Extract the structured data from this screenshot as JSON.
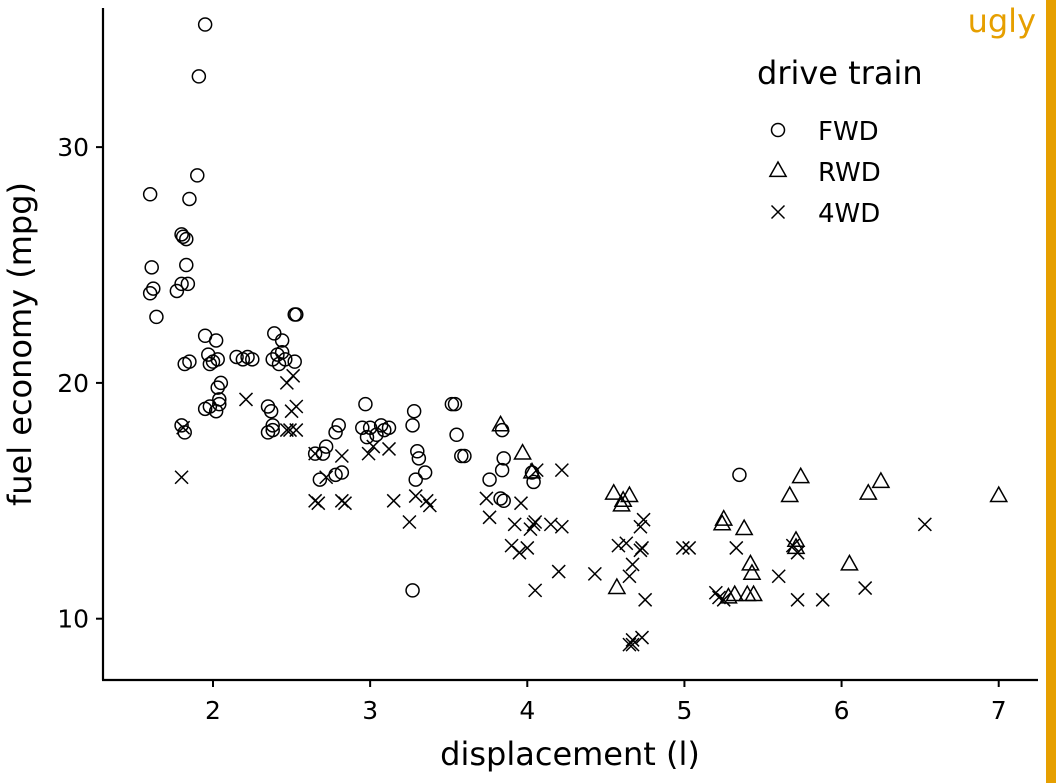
{
  "badge": {
    "text": "ugly",
    "color": "#E69F00"
  },
  "chart_data": {
    "type": "scatter",
    "xlabel": "displacement (l)",
    "ylabel": "fuel economy (mpg)",
    "xlim": [
      1.3,
      7.25
    ],
    "ylim": [
      7.4,
      35.9
    ],
    "xticks": [
      2,
      3,
      4,
      5,
      6,
      7
    ],
    "yticks": [
      10,
      20,
      30
    ],
    "grid": false,
    "legend": {
      "title": "drive train",
      "placement": "top-right",
      "entries": [
        {
          "label": "FWD",
          "shape": "circle"
        },
        {
          "label": "RWD",
          "shape": "triangle"
        },
        {
          "label": "4WD",
          "shape": "cross"
        }
      ]
    },
    "series": [
      {
        "name": "FWD",
        "shape": "circle",
        "points": [
          [
            1.95,
            35.2
          ],
          [
            1.91,
            33.0
          ],
          [
            1.9,
            28.8
          ],
          [
            1.6,
            28.0
          ],
          [
            1.85,
            27.8
          ],
          [
            1.8,
            26.3
          ],
          [
            1.81,
            26.2
          ],
          [
            1.83,
            26.1
          ],
          [
            1.61,
            24.9
          ],
          [
            1.83,
            25.0
          ],
          [
            1.62,
            24.0
          ],
          [
            1.6,
            23.8
          ],
          [
            1.8,
            24.2
          ],
          [
            1.84,
            24.2
          ],
          [
            1.77,
            23.9
          ],
          [
            1.64,
            22.8
          ],
          [
            1.95,
            22.0
          ],
          [
            2.02,
            21.8
          ],
          [
            1.97,
            21.2
          ],
          [
            2.0,
            20.9
          ],
          [
            2.03,
            21.0
          ],
          [
            1.98,
            20.8
          ],
          [
            1.85,
            20.9
          ],
          [
            1.82,
            20.8
          ],
          [
            2.15,
            21.1
          ],
          [
            2.19,
            21.0
          ],
          [
            2.22,
            21.1
          ],
          [
            2.25,
            21.0
          ],
          [
            2.39,
            22.1
          ],
          [
            2.44,
            21.8
          ],
          [
            2.41,
            21.2
          ],
          [
            2.44,
            21.3
          ],
          [
            2.38,
            21.0
          ],
          [
            2.46,
            21.0
          ],
          [
            2.42,
            20.8
          ],
          [
            2.52,
            20.9
          ],
          [
            2.52,
            22.9
          ],
          [
            2.53,
            22.9
          ],
          [
            2.05,
            20.0
          ],
          [
            2.03,
            19.8
          ],
          [
            2.04,
            19.1
          ],
          [
            1.95,
            18.9
          ],
          [
            2.02,
            18.8
          ],
          [
            1.98,
            19.0
          ],
          [
            2.04,
            19.3
          ],
          [
            1.8,
            18.2
          ],
          [
            1.82,
            17.9
          ],
          [
            2.35,
            19.0
          ],
          [
            2.37,
            18.8
          ],
          [
            2.38,
            18.2
          ],
          [
            2.35,
            17.9
          ],
          [
            2.38,
            18.0
          ],
          [
            2.8,
            18.2
          ],
          [
            2.78,
            17.9
          ],
          [
            2.72,
            17.3
          ],
          [
            2.7,
            17.0
          ],
          [
            2.65,
            17.0
          ],
          [
            2.68,
            15.9
          ],
          [
            2.78,
            16.1
          ],
          [
            2.82,
            16.2
          ],
          [
            2.95,
            18.1
          ],
          [
            2.97,
            19.1
          ],
          [
            2.98,
            17.7
          ],
          [
            3.0,
            18.1
          ],
          [
            3.04,
            17.8
          ],
          [
            3.07,
            18.2
          ],
          [
            3.09,
            18.0
          ],
          [
            3.12,
            18.1
          ],
          [
            3.28,
            18.8
          ],
          [
            3.27,
            18.2
          ],
          [
            3.3,
            17.1
          ],
          [
            3.31,
            16.8
          ],
          [
            3.35,
            16.2
          ],
          [
            3.29,
            15.9
          ],
          [
            3.27,
            11.2
          ],
          [
            3.52,
            19.1
          ],
          [
            3.54,
            19.1
          ],
          [
            3.55,
            17.8
          ],
          [
            3.58,
            16.9
          ],
          [
            3.6,
            16.9
          ],
          [
            3.84,
            18.0
          ],
          [
            3.85,
            16.8
          ],
          [
            3.84,
            16.3
          ],
          [
            3.83,
            15.1
          ],
          [
            3.85,
            15.0
          ],
          [
            3.76,
            15.9
          ],
          [
            4.03,
            16.2
          ],
          [
            4.04,
            15.8
          ],
          [
            5.35,
            16.1
          ]
        ]
      },
      {
        "name": "RWD",
        "shape": "triangle",
        "points": [
          [
            3.83,
            18.2
          ],
          [
            3.97,
            17.0
          ],
          [
            4.03,
            16.2
          ],
          [
            4.55,
            15.3
          ],
          [
            4.65,
            15.2
          ],
          [
            4.61,
            15.0
          ],
          [
            4.6,
            14.8
          ],
          [
            4.57,
            11.3
          ],
          [
            5.25,
            14.2
          ],
          [
            5.24,
            14.0
          ],
          [
            5.38,
            13.8
          ],
          [
            5.42,
            12.3
          ],
          [
            5.43,
            11.9
          ],
          [
            5.32,
            11.0
          ],
          [
            5.28,
            10.9
          ],
          [
            5.4,
            11.0
          ],
          [
            5.44,
            11.0
          ],
          [
            5.67,
            15.2
          ],
          [
            5.74,
            16.0
          ],
          [
            5.71,
            13.3
          ],
          [
            5.71,
            13.0
          ],
          [
            6.05,
            12.3
          ],
          [
            6.17,
            15.3
          ],
          [
            6.25,
            15.8
          ],
          [
            7.0,
            15.2
          ]
        ]
      },
      {
        "name": "4WD",
        "shape": "cross",
        "points": [
          [
            1.8,
            16.0
          ],
          [
            1.81,
            18.1
          ],
          [
            2.21,
            19.3
          ],
          [
            2.47,
            20.0
          ],
          [
            2.51,
            20.3
          ],
          [
            2.53,
            19.0
          ],
          [
            2.5,
            18.8
          ],
          [
            2.53,
            18.0
          ],
          [
            2.47,
            18.0
          ],
          [
            2.49,
            18.0
          ],
          [
            2.65,
            17.0
          ],
          [
            2.72,
            16.0
          ],
          [
            2.65,
            15.0
          ],
          [
            2.67,
            14.9
          ],
          [
            2.82,
            16.9
          ],
          [
            2.82,
            15.0
          ],
          [
            2.84,
            14.9
          ],
          [
            2.99,
            17.0
          ],
          [
            3.02,
            17.3
          ],
          [
            3.12,
            17.2
          ],
          [
            3.15,
            15.0
          ],
          [
            3.36,
            15.0
          ],
          [
            3.38,
            14.8
          ],
          [
            3.25,
            14.1
          ],
          [
            3.29,
            15.2
          ],
          [
            3.74,
            15.1
          ],
          [
            3.76,
            14.3
          ],
          [
            3.96,
            14.9
          ],
          [
            3.92,
            14.0
          ],
          [
            3.9,
            13.1
          ],
          [
            3.95,
            12.8
          ],
          [
            4.0,
            13.0
          ],
          [
            4.05,
            14.1
          ],
          [
            4.04,
            14.0
          ],
          [
            4.02,
            13.8
          ],
          [
            4.06,
            16.3
          ],
          [
            4.22,
            16.3
          ],
          [
            4.15,
            14.0
          ],
          [
            4.22,
            13.9
          ],
          [
            4.2,
            12.0
          ],
          [
            4.05,
            11.2
          ],
          [
            4.43,
            11.9
          ],
          [
            4.58,
            13.1
          ],
          [
            4.63,
            13.2
          ],
          [
            4.72,
            13.9
          ],
          [
            4.74,
            14.2
          ],
          [
            4.73,
            13.0
          ],
          [
            4.72,
            12.9
          ],
          [
            4.67,
            12.3
          ],
          [
            4.65,
            11.8
          ],
          [
            4.75,
            10.8
          ],
          [
            4.67,
            9.1
          ],
          [
            4.73,
            9.2
          ],
          [
            4.65,
            8.9
          ],
          [
            4.67,
            8.9
          ],
          [
            4.99,
            13.0
          ],
          [
            5.03,
            13.0
          ],
          [
            5.2,
            11.1
          ],
          [
            5.22,
            10.9
          ],
          [
            5.25,
            10.8
          ],
          [
            5.33,
            13.0
          ],
          [
            5.6,
            11.8
          ],
          [
            5.69,
            13.1
          ],
          [
            5.72,
            12.8
          ],
          [
            5.72,
            10.8
          ],
          [
            5.88,
            10.8
          ],
          [
            6.15,
            11.3
          ],
          [
            6.53,
            14.0
          ]
        ]
      }
    ]
  }
}
